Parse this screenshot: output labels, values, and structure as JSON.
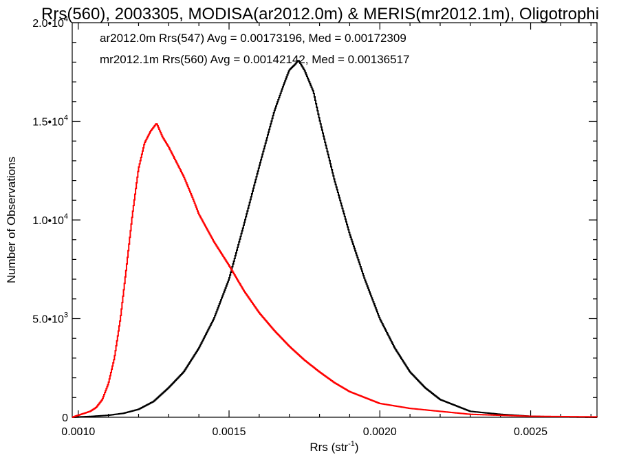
{
  "chart_data": {
    "type": "line",
    "title": "Rrs(560), 2003305, MODISA(ar2012.0m) & MERIS(mr2012.1m), Oligotrophi",
    "xlabel": {
      "main": "Rrs (str",
      "sup": "-1",
      "end": ")"
    },
    "ylabel": "Number of Observations",
    "xlim": [
      0.00098,
      0.00272
    ],
    "ylim": [
      0,
      20000
    ],
    "x_ticks": [
      {
        "value": 0.001,
        "label": "0.0010"
      },
      {
        "value": 0.0015,
        "label": "0.0015"
      },
      {
        "value": 0.002,
        "label": "0.0020"
      },
      {
        "value": 0.0025,
        "label": "0.0025"
      }
    ],
    "y_ticks": [
      {
        "value": 0,
        "label": "0",
        "sup": ""
      },
      {
        "value": 5000,
        "label": "5.0•10",
        "sup": "3"
      },
      {
        "value": 10000,
        "label": "1.0•10",
        "sup": "4"
      },
      {
        "value": 15000,
        "label": "1.5•10",
        "sup": "4"
      },
      {
        "value": 20000,
        "label": "2.0•10",
        "sup": "4"
      }
    ],
    "legend": [
      {
        "text": "ar2012.0m Rrs(547) Avg = 0.00173196, Med = 0.00172309",
        "color": "#000000"
      },
      {
        "text": "mr2012.1m Rrs(560) Avg = 0.00142142, Med = 0.00136517",
        "color": "#ff0000"
      }
    ],
    "series": [
      {
        "color": "#000000",
        "x": [
          0.00098,
          0.00105,
          0.0011,
          0.00115,
          0.0012,
          0.00125,
          0.0013,
          0.00135,
          0.0014,
          0.00145,
          0.0015,
          0.00155,
          0.0016,
          0.00165,
          0.00168,
          0.0017,
          0.00172,
          0.00173,
          0.00175,
          0.00178,
          0.0018,
          0.00185,
          0.0019,
          0.00195,
          0.002,
          0.00205,
          0.0021,
          0.00215,
          0.0022,
          0.00225,
          0.0023,
          0.0024,
          0.0025,
          0.0026,
          0.00272
        ],
        "y": [
          0,
          50,
          100,
          200,
          400,
          800,
          1500,
          2300,
          3500,
          5000,
          7000,
          9800,
          12700,
          15500,
          16800,
          17600,
          17900,
          18100,
          17600,
          16500,
          15100,
          12000,
          9300,
          7000,
          5000,
          3500,
          2300,
          1500,
          900,
          600,
          300,
          150,
          50,
          20,
          0
        ]
      },
      {
        "color": "#ff0000",
        "x": [
          0.00098,
          0.001,
          0.00102,
          0.00104,
          0.00106,
          0.00108,
          0.0011,
          0.00112,
          0.00114,
          0.00116,
          0.00118,
          0.0012,
          0.00122,
          0.00124,
          0.00126,
          0.00128,
          0.0013,
          0.00132,
          0.00135,
          0.00138,
          0.0014,
          0.00145,
          0.0015,
          0.00155,
          0.0016,
          0.00165,
          0.0017,
          0.00175,
          0.0018,
          0.00185,
          0.0019,
          0.00195,
          0.002,
          0.0021,
          0.0022,
          0.0023,
          0.0024,
          0.0025,
          0.00272
        ],
        "y": [
          0,
          100,
          200,
          300,
          500,
          900,
          1700,
          3000,
          5000,
          7600,
          10300,
          12600,
          13900,
          14500,
          14900,
          14200,
          13700,
          13100,
          12200,
          11100,
          10300,
          8900,
          7700,
          6400,
          5300,
          4400,
          3600,
          2900,
          2300,
          1750,
          1300,
          1000,
          700,
          450,
          300,
          150,
          100,
          50,
          20
        ]
      }
    ]
  }
}
